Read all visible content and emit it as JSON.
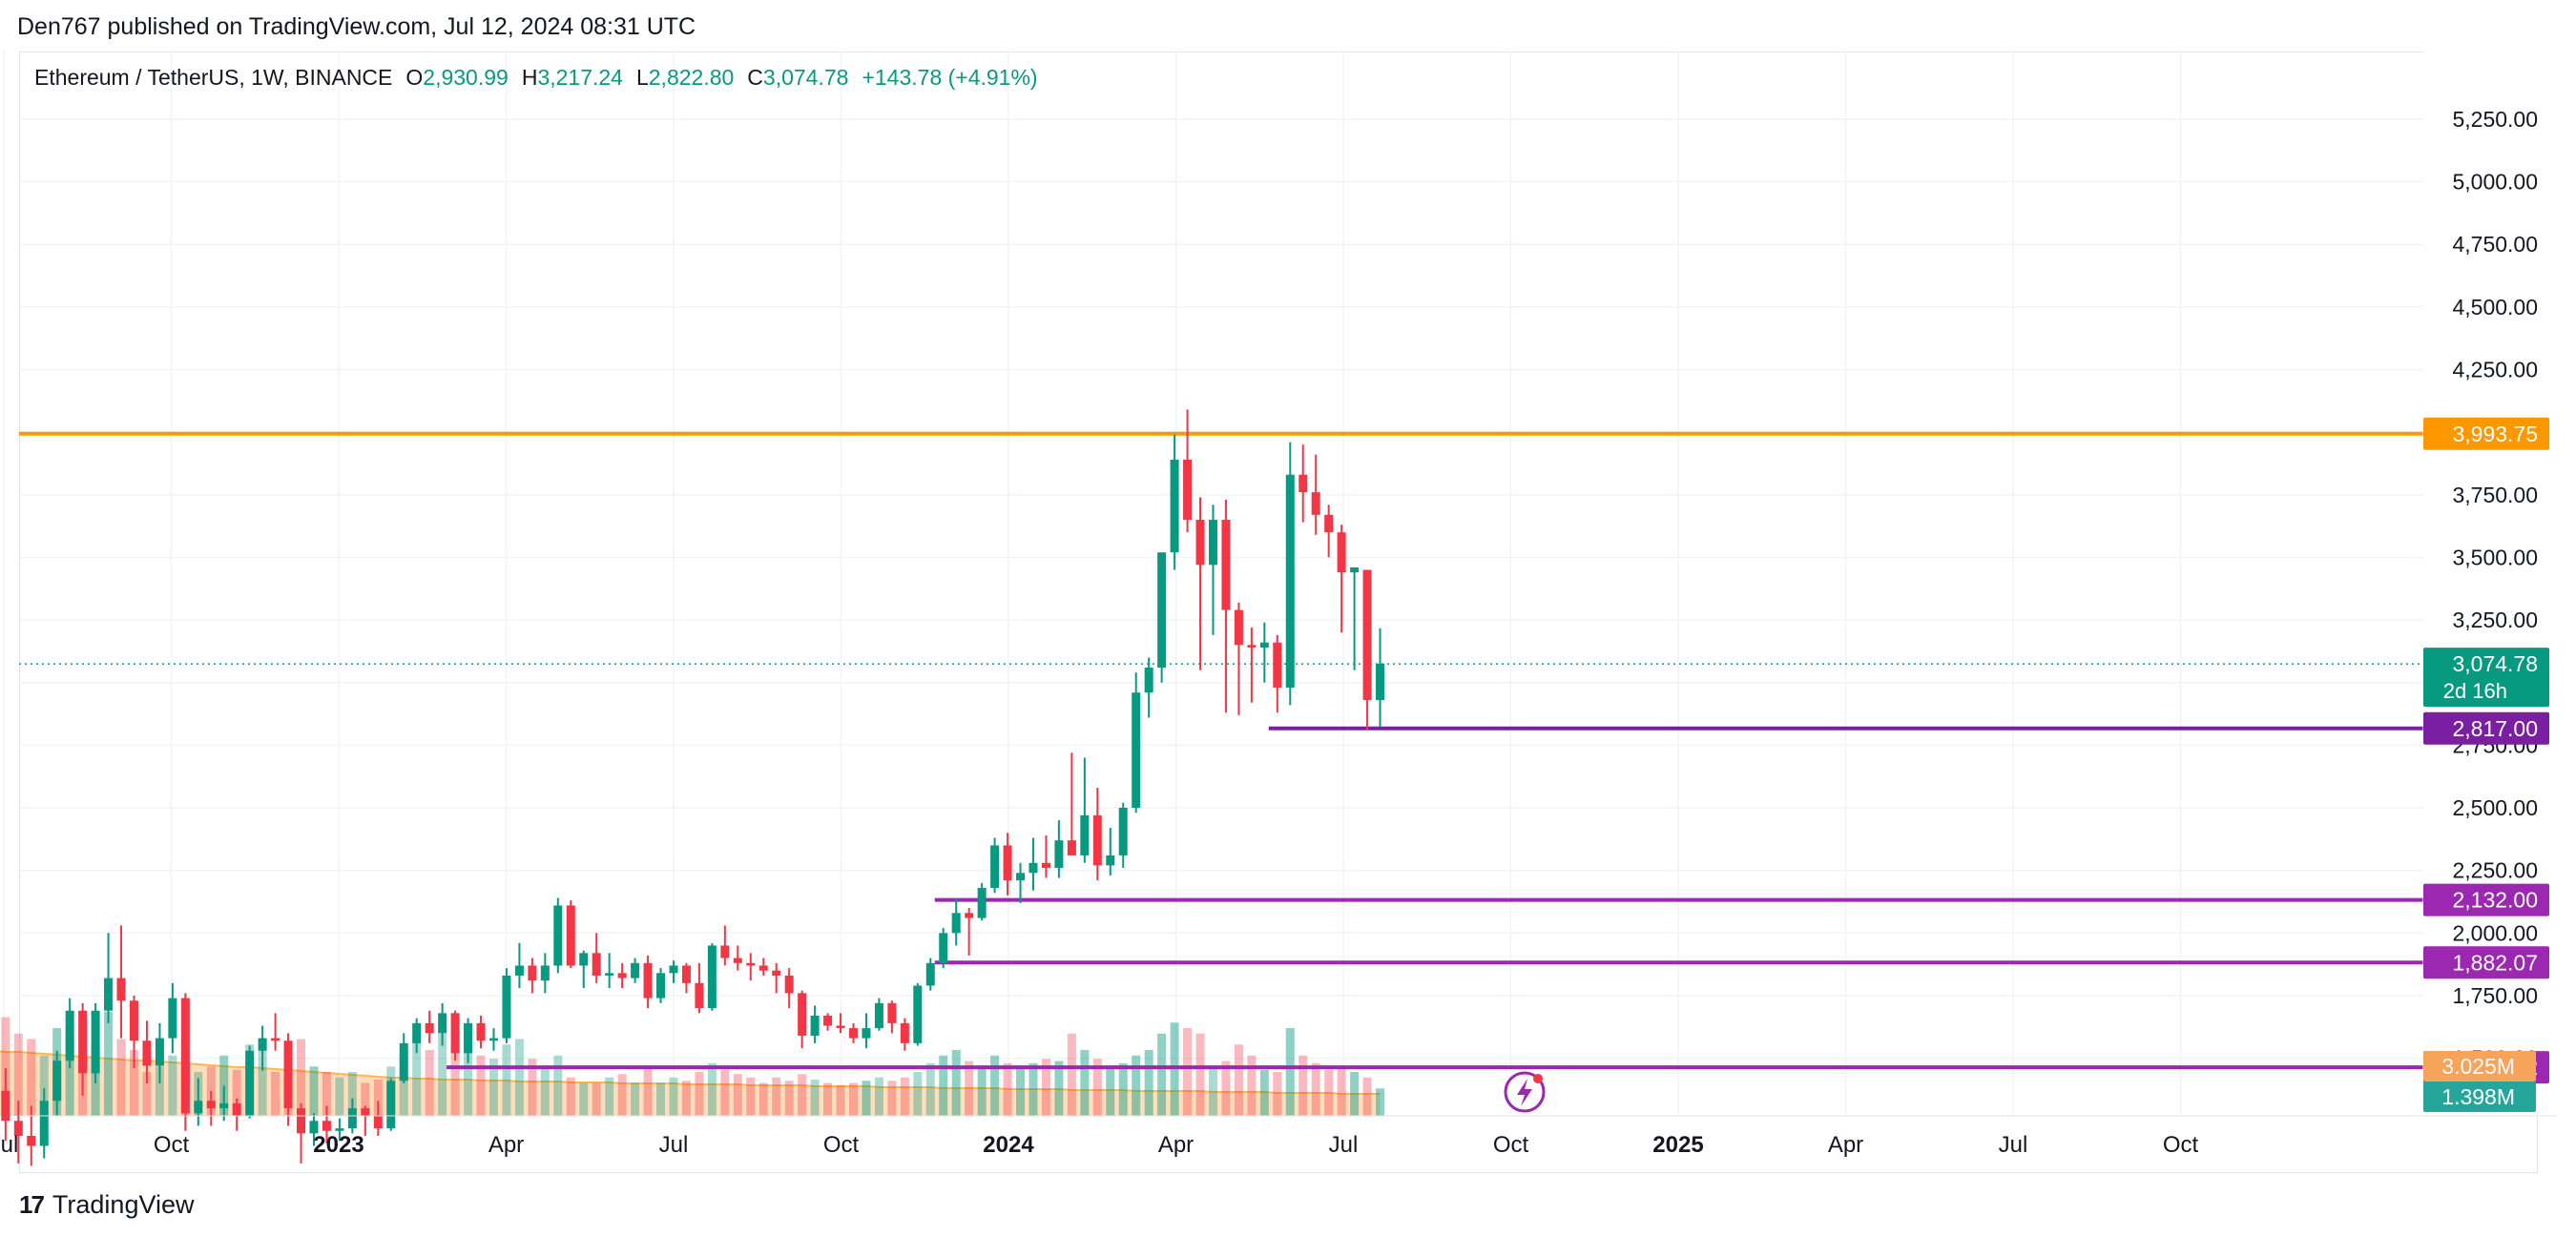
{
  "header": {
    "published": "Den767 published on TradingView.com, Jul 12, 2024 08:31 UTC"
  },
  "legend": {
    "symbol": "Ethereum / TetherUS, 1W, BINANCE",
    "open_label": "O",
    "open": "2,930.99",
    "high_label": "H",
    "high": "3,217.24",
    "low_label": "L",
    "low": "2,822.80",
    "close_label": "C",
    "close": "3,074.78",
    "change": "+143.78 (+4.91%)"
  },
  "footer": {
    "brand": "TradingView",
    "logo": "17"
  },
  "colors": {
    "up": "#089981",
    "down": "#f23645",
    "resistance": "#ff9800",
    "support": "#7b1fa2",
    "support2": "#9c27b0",
    "volume_ma": "#ffb74d",
    "grid": "#f0f3fa"
  },
  "chart_data": {
    "type": "candlestick",
    "interval": "1W",
    "x_start": 2022.33,
    "x_step_years": 0.01918,
    "ylim": [
      1270,
      5520
    ],
    "y_ticks": [
      "1,500.00",
      "1,750.00",
      "2,000.00",
      "2,250.00",
      "2,500.00",
      "2,750.00",
      "3,000.00",
      "3,250.00",
      "3,500.00",
      "3,750.00",
      "4,000.00",
      "4,250.00",
      "4,500.00",
      "4,750.00",
      "5,000.00",
      "5,250.00"
    ],
    "y_tick_values": [
      1500,
      1750,
      2000,
      2250,
      2500,
      2750,
      3000,
      3250,
      3500,
      3750,
      4000,
      4250,
      4500,
      4750,
      5000,
      5250
    ],
    "x_ticks": [
      {
        "label": "Jul",
        "t": 2022.5,
        "bold": false
      },
      {
        "label": "Oct",
        "t": 2022.75,
        "bold": false
      },
      {
        "label": "2023",
        "t": 2023.0,
        "bold": true
      },
      {
        "label": "Apr",
        "t": 2023.25,
        "bold": false
      },
      {
        "label": "Jul",
        "t": 2023.5,
        "bold": false
      },
      {
        "label": "Oct",
        "t": 2023.75,
        "bold": false
      },
      {
        "label": "2024",
        "t": 2024.0,
        "bold": true
      },
      {
        "label": "Apr",
        "t": 2024.25,
        "bold": false
      },
      {
        "label": "Jul",
        "t": 2024.5,
        "bold": false
      },
      {
        "label": "Oct",
        "t": 2024.75,
        "bold": false
      },
      {
        "label": "2025",
        "t": 2025.0,
        "bold": true
      },
      {
        "label": "Apr",
        "t": 2025.25,
        "bold": false
      },
      {
        "label": "Jul",
        "t": 2025.5,
        "bold": false
      },
      {
        "label": "Oct",
        "t": 2025.75,
        "bold": false
      }
    ],
    "ohlc": [
      [
        3100,
        3130,
        2850,
        2900
      ],
      [
        2900,
        2930,
        2750,
        2830
      ],
      [
        2830,
        2880,
        2650,
        2720
      ],
      [
        2720,
        2740,
        2020,
        2060
      ],
      [
        2060,
        2170,
        1900,
        1940
      ],
      [
        1940,
        2030,
        1720,
        1810
      ],
      [
        1810,
        2000,
        1750,
        1970
      ],
      [
        1970,
        2000,
        1700,
        1780
      ],
      [
        1780,
        1900,
        1350,
        1370
      ],
      [
        1370,
        1460,
        1170,
        1250
      ],
      [
        1250,
        1330,
        1080,
        1190
      ],
      [
        1190,
        1310,
        1070,
        1150
      ],
      [
        1150,
        1380,
        1100,
        1330
      ],
      [
        1330,
        1530,
        1270,
        1490
      ],
      [
        1490,
        1740,
        1460,
        1690
      ],
      [
        1690,
        1720,
        1350,
        1440
      ],
      [
        1440,
        1720,
        1400,
        1690
      ],
      [
        1690,
        2000,
        1640,
        1820
      ],
      [
        1820,
        2030,
        1580,
        1730
      ],
      [
        1730,
        1750,
        1460,
        1570
      ],
      [
        1570,
        1650,
        1400,
        1470
      ],
      [
        1470,
        1640,
        1400,
        1580
      ],
      [
        1580,
        1800,
        1520,
        1740
      ],
      [
        1740,
        1760,
        1210,
        1280
      ],
      [
        1280,
        1420,
        1230,
        1330
      ],
      [
        1330,
        1370,
        1230,
        1300
      ],
      [
        1300,
        1390,
        1250,
        1320
      ],
      [
        1320,
        1340,
        1210,
        1270
      ],
      [
        1270,
        1550,
        1260,
        1530
      ],
      [
        1530,
        1630,
        1450,
        1580
      ],
      [
        1580,
        1680,
        1530,
        1570
      ],
      [
        1570,
        1600,
        1230,
        1300
      ],
      [
        1300,
        1320,
        1080,
        1200
      ],
      [
        1200,
        1280,
        1150,
        1250
      ],
      [
        1250,
        1310,
        1160,
        1210
      ],
      [
        1210,
        1260,
        1170,
        1220
      ],
      [
        1220,
        1340,
        1200,
        1300
      ],
      [
        1300,
        1310,
        1190,
        1270
      ],
      [
        1270,
        1330,
        1190,
        1220
      ],
      [
        1220,
        1420,
        1210,
        1410
      ],
      [
        1410,
        1600,
        1400,
        1560
      ],
      [
        1560,
        1660,
        1520,
        1640
      ],
      [
        1640,
        1690,
        1560,
        1600
      ],
      [
        1600,
        1720,
        1550,
        1680
      ],
      [
        1680,
        1690,
        1490,
        1520
      ],
      [
        1520,
        1660,
        1480,
        1640
      ],
      [
        1640,
        1670,
        1540,
        1570
      ],
      [
        1570,
        1620,
        1530,
        1580
      ],
      [
        1580,
        1860,
        1560,
        1830
      ],
      [
        1830,
        1960,
        1780,
        1870
      ],
      [
        1870,
        1900,
        1760,
        1810
      ],
      [
        1810,
        1920,
        1760,
        1870
      ],
      [
        1870,
        2140,
        1840,
        2110
      ],
      [
        2110,
        2130,
        1860,
        1870
      ],
      [
        1870,
        1930,
        1780,
        1920
      ],
      [
        1920,
        2000,
        1800,
        1830
      ],
      [
        1830,
        1920,
        1780,
        1840
      ],
      [
        1840,
        1880,
        1780,
        1820
      ],
      [
        1820,
        1900,
        1800,
        1880
      ],
      [
        1880,
        1910,
        1700,
        1740
      ],
      [
        1740,
        1860,
        1720,
        1840
      ],
      [
        1840,
        1890,
        1800,
        1870
      ],
      [
        1870,
        1880,
        1760,
        1800
      ],
      [
        1800,
        1880,
        1680,
        1700
      ],
      [
        1700,
        1960,
        1690,
        1950
      ],
      [
        1950,
        2030,
        1870,
        1900
      ],
      [
        1900,
        1950,
        1850,
        1880
      ],
      [
        1880,
        1920,
        1810,
        1870
      ],
      [
        1870,
        1900,
        1830,
        1850
      ],
      [
        1850,
        1880,
        1760,
        1830
      ],
      [
        1830,
        1860,
        1700,
        1760
      ],
      [
        1760,
        1770,
        1540,
        1590
      ],
      [
        1590,
        1710,
        1560,
        1670
      ],
      [
        1670,
        1680,
        1610,
        1630
      ],
      [
        1630,
        1680,
        1600,
        1620
      ],
      [
        1620,
        1640,
        1560,
        1580
      ],
      [
        1580,
        1680,
        1540,
        1620
      ],
      [
        1620,
        1740,
        1610,
        1720
      ],
      [
        1720,
        1730,
        1600,
        1640
      ],
      [
        1640,
        1660,
        1530,
        1560
      ],
      [
        1560,
        1800,
        1550,
        1790
      ],
      [
        1790,
        1900,
        1770,
        1880
      ],
      [
        1880,
        2020,
        1860,
        2000
      ],
      [
        2000,
        2140,
        1950,
        2080
      ],
      [
        2080,
        2100,
        1910,
        2060
      ],
      [
        2060,
        2200,
        2050,
        2180
      ],
      [
        2180,
        2380,
        2160,
        2350
      ],
      [
        2350,
        2400,
        2150,
        2210
      ],
      [
        2210,
        2280,
        2120,
        2240
      ],
      [
        2240,
        2380,
        2170,
        2280
      ],
      [
        2280,
        2390,
        2220,
        2260
      ],
      [
        2260,
        2450,
        2220,
        2370
      ],
      [
        2370,
        2720,
        2350,
        2310
      ],
      [
        2310,
        2700,
        2280,
        2470
      ],
      [
        2470,
        2580,
        2210,
        2270
      ],
      [
        2270,
        2420,
        2230,
        2310
      ],
      [
        2310,
        2520,
        2260,
        2500
      ],
      [
        2500,
        3040,
        2480,
        2960
      ],
      [
        2960,
        3100,
        2860,
        3060
      ],
      [
        3060,
        3500,
        3000,
        3520
      ],
      [
        3520,
        3990,
        3450,
        3890
      ],
      [
        3890,
        4090,
        3600,
        3650
      ],
      [
        3650,
        3740,
        3050,
        3470
      ],
      [
        3470,
        3710,
        3190,
        3650
      ],
      [
        3650,
        3730,
        2880,
        3290
      ],
      [
        3290,
        3320,
        2870,
        3150
      ],
      [
        3150,
        3220,
        2920,
        3140
      ],
      [
        3140,
        3240,
        3000,
        3160
      ],
      [
        3160,
        3190,
        2880,
        2980
      ],
      [
        2980,
        3960,
        2910,
        3830
      ],
      [
        3830,
        3950,
        3640,
        3760
      ],
      [
        3760,
        3910,
        3590,
        3670
      ],
      [
        3670,
        3710,
        3500,
        3600
      ],
      [
        3600,
        3630,
        3200,
        3440
      ],
      [
        3440,
        3460,
        3050,
        3460
      ],
      [
        3450,
        3450,
        2810,
        2930
      ],
      [
        2930,
        3217,
        2823,
        3075
      ]
    ],
    "volume_ma": [
      0.68,
      0.68,
      0.69,
      0.69,
      0.69,
      0.69,
      0.69,
      0.68,
      0.68,
      0.67,
      0.67,
      0.66,
      0.65,
      0.64,
      0.63,
      0.62,
      0.61,
      0.6,
      0.59,
      0.58,
      0.58,
      0.57,
      0.56,
      0.55,
      0.54,
      0.53,
      0.52,
      0.51,
      0.51,
      0.5,
      0.49,
      0.48,
      0.47,
      0.46,
      0.45,
      0.44,
      0.43,
      0.42,
      0.41,
      0.4,
      0.4,
      0.39,
      0.39,
      0.38,
      0.38,
      0.38,
      0.37,
      0.37,
      0.37,
      0.36,
      0.36,
      0.36,
      0.36,
      0.35,
      0.35,
      0.35,
      0.35,
      0.34,
      0.34,
      0.34,
      0.34,
      0.34,
      0.33,
      0.33,
      0.33,
      0.33,
      0.33,
      0.32,
      0.32,
      0.32,
      0.32,
      0.32,
      0.31,
      0.31,
      0.31,
      0.31,
      0.31,
      0.3,
      0.3,
      0.3,
      0.3,
      0.3,
      0.29,
      0.29,
      0.29,
      0.29,
      0.29,
      0.28,
      0.28,
      0.28,
      0.28,
      0.28,
      0.27,
      0.27,
      0.27,
      0.27,
      0.27,
      0.26,
      0.26,
      0.26,
      0.26,
      0.26,
      0.26,
      0.25,
      0.25,
      0.25,
      0.25,
      0.25,
      0.24,
      0.24,
      0.24,
      0.24,
      0.24,
      0.23,
      0.23,
      0.23,
      0.23
    ],
    "volumes": [
      0.55,
      0.45,
      0.6,
      0.95,
      0.7,
      0.65,
      0.45,
      0.7,
      1.0,
      0.9,
      0.75,
      0.7,
      0.55,
      0.8,
      0.75,
      0.55,
      0.65,
      0.95,
      0.7,
      0.6,
      0.4,
      0.45,
      0.55,
      0.6,
      0.4,
      0.45,
      0.55,
      0.42,
      0.65,
      0.6,
      0.4,
      0.55,
      0.7,
      0.45,
      0.4,
      0.35,
      0.4,
      0.3,
      0.33,
      0.45,
      0.55,
      0.7,
      0.6,
      0.75,
      0.65,
      0.6,
      0.55,
      0.52,
      0.65,
      0.7,
      0.52,
      0.45,
      0.55,
      0.35,
      0.3,
      0.3,
      0.35,
      0.38,
      0.3,
      0.45,
      0.3,
      0.35,
      0.32,
      0.4,
      0.48,
      0.42,
      0.38,
      0.35,
      0.3,
      0.35,
      0.32,
      0.38,
      0.33,
      0.3,
      0.28,
      0.3,
      0.32,
      0.35,
      0.32,
      0.35,
      0.4,
      0.48,
      0.55,
      0.6,
      0.5,
      0.45,
      0.55,
      0.48,
      0.45,
      0.48,
      0.52,
      0.5,
      0.75,
      0.6,
      0.52,
      0.45,
      0.48,
      0.55,
      0.6,
      0.75,
      0.85,
      0.8,
      0.75,
      0.45,
      0.5,
      0.65,
      0.55,
      0.42,
      0.4,
      0.8,
      0.55,
      0.48,
      0.42,
      0.45,
      0.4,
      0.35,
      0.25
    ],
    "volume_up_strong": [
      6,
      13,
      14,
      15,
      16,
      17,
      18,
      19,
      26,
      33,
      70,
      76,
      82,
      83,
      84,
      85,
      86,
      87,
      88,
      89,
      90,
      91,
      92,
      93,
      94,
      95,
      96,
      97,
      98,
      99,
      100,
      101,
      102,
      104,
      105,
      106,
      107,
      108,
      109,
      110,
      111,
      112,
      113,
      114,
      115,
      116,
      118
    ],
    "horizontal_levels": [
      {
        "value": 3993.75,
        "label": "3,993.75",
        "color": "#ff9800",
        "start_index": -1
      },
      {
        "value": 2817.0,
        "label": "2,817.00",
        "color": "#7b1fa2",
        "start_index": 108
      },
      {
        "value": 2132.0,
        "label": "2,132.00",
        "color": "#9c27b0",
        "start_index": 82
      },
      {
        "value": 1882.07,
        "label": "1,882.07",
        "color": "#9c27b0",
        "start_index": 82
      },
      {
        "value": 1463.92,
        "label": "1,463.92",
        "color": "#9c27b0",
        "start_index": 44
      }
    ],
    "last_price": {
      "value": 3074.78,
      "label": "3,074.78",
      "countdown": "2d 16h",
      "color": "#089981"
    },
    "volume_labels": [
      {
        "label": "3.025M",
        "color": "#f7a35c"
      },
      {
        "label": "1.398M",
        "color": "#26a69a"
      }
    ]
  }
}
